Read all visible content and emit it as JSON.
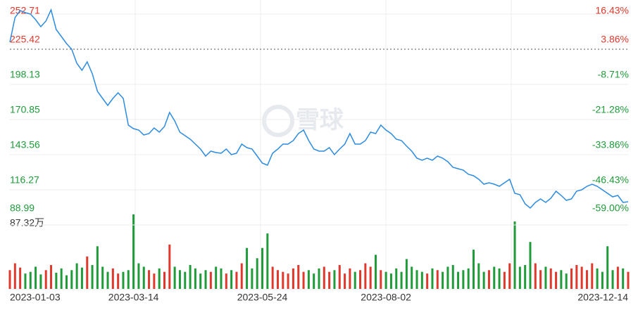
{
  "chart_data": [
    {
      "type": "line",
      "color": "#2d8be0",
      "grid": true,
      "up_color": "#e0382c",
      "down_color": "#1f9b3a",
      "watermark": "雪球",
      "categories": [
        "2023-01-03",
        null,
        null,
        null,
        null,
        null,
        null,
        null,
        null,
        null,
        null,
        null,
        null,
        null,
        null,
        null,
        null,
        null,
        null,
        null,
        null,
        null,
        null,
        null,
        "2023-03-14",
        null,
        null,
        null,
        null,
        null,
        null,
        null,
        null,
        null,
        null,
        null,
        null,
        null,
        null,
        null,
        null,
        null,
        null,
        null,
        null,
        null,
        null,
        null,
        null,
        "2023-05-24",
        null,
        null,
        null,
        null,
        null,
        null,
        null,
        null,
        null,
        null,
        null,
        null,
        null,
        null,
        null,
        null,
        null,
        null,
        null,
        null,
        null,
        null,
        null,
        "2023-08-02",
        null,
        null,
        null,
        null,
        null,
        null,
        null,
        null,
        null,
        null,
        null,
        null,
        null,
        null,
        null,
        null,
        null,
        null,
        null,
        null,
        null,
        null,
        null,
        null,
        null,
        null,
        null,
        null,
        null,
        null,
        null,
        null,
        null,
        null,
        null,
        null,
        null,
        null,
        null,
        null,
        null,
        null,
        null,
        null,
        null,
        null,
        "2023-12-14"
      ],
      "values": [
        230.88,
        249.98,
        255.44,
        253.8,
        252.71,
        248.34,
        242.88,
        247.25,
        255.98,
        240.7,
        235.24,
        229.79,
        225.42,
        214.5,
        209.05,
        215.6,
        206.32,
        192.67,
        187.21,
        181.76,
        187.21,
        191.58,
        187.21,
        166.47,
        163.74,
        162.65,
        158.83,
        159.92,
        164.29,
        161.02,
        165.38,
        176.3,
        169.75,
        161.02,
        158.29,
        155.56,
        151.74,
        147.92,
        142.46,
        146.28,
        145.19,
        144.64,
        147.92,
        143.55,
        144.64,
        151.74,
        149.01,
        147.92,
        142.46,
        137.0,
        135.36,
        144.64,
        147.92,
        151.74,
        151.74,
        154.47,
        159.92,
        162.65,
        154.47,
        147.92,
        146.28,
        146.28,
        149.01,
        143.55,
        147.92,
        151.74,
        159.92,
        151.74,
        151.74,
        154.47,
        161.02,
        159.92,
        166.47,
        162.65,
        159.92,
        155.56,
        154.47,
        150.19,
        146.28,
        140.82,
        139.18,
        140.82,
        139.18,
        142.46,
        140.82,
        138.09,
        133.73,
        132.63,
        131.54,
        128.27,
        127.18,
        124.45,
        120.63,
        121.72,
        120.63,
        118.99,
        121.72,
        124.45,
        113.53,
        112.44,
        105.34,
        102.07,
        106.44,
        109.17,
        106.44,
        109.71,
        115.17,
        111.89,
        108.07,
        109.17,
        115.17,
        116.26,
        118.99,
        120.63,
        118.99,
        116.26,
        113.53,
        110.8,
        111.89,
        106.44,
        106.98
      ],
      "ylim": [
        88.99,
        252.71
      ],
      "yticks": [
        252.71,
        225.42,
        198.13,
        170.85,
        143.56,
        116.27,
        88.99
      ],
      "y2lim": [
        -59,
        16.43
      ],
      "y2ticks": [
        {
          "value": 16.43,
          "label": "16.43%"
        },
        {
          "value": 3.86,
          "label": "3.86%"
        },
        {
          "value": -8.71,
          "label": "-8.71%"
        },
        {
          "value": -21.28,
          "label": "-21.28%"
        },
        {
          "value": -33.86,
          "label": "-33.86%"
        },
        {
          "value": -46.43,
          "label": "-46.43%"
        },
        {
          "value": -59,
          "label": "-59.00%"
        }
      ]
    },
    {
      "type": "bar",
      "ylim": [
        0,
        87.32
      ],
      "yticks": [
        {
          "value": 87.32,
          "label": "87.32万"
        }
      ],
      "values": [
        22,
        30,
        25,
        18,
        20,
        26,
        17,
        22,
        28,
        19,
        24,
        16,
        22,
        30,
        25,
        38,
        28,
        50,
        26,
        20,
        24,
        18,
        20,
        22,
        87.32,
        30,
        26,
        22,
        18,
        24,
        20,
        52,
        26,
        22,
        20,
        28,
        24,
        18,
        22,
        20,
        26,
        24,
        18,
        22,
        20,
        30,
        48,
        24,
        36,
        48,
        65,
        26,
        22,
        20,
        18,
        24,
        28,
        20,
        22,
        18,
        24,
        26,
        20,
        22,
        28,
        18,
        24,
        20,
        22,
        30,
        26,
        40,
        22,
        20,
        18,
        24,
        20,
        35,
        26,
        22,
        20,
        18,
        24,
        22,
        20,
        26,
        28,
        20,
        22,
        24,
        46,
        30,
        20,
        22,
        26,
        24,
        20,
        30,
        79,
        26,
        28,
        55,
        30,
        22,
        26,
        24,
        20,
        22,
        18,
        24,
        28,
        26,
        22,
        30,
        24,
        20,
        50,
        22,
        26,
        24,
        20
      ]
    }
  ]
}
